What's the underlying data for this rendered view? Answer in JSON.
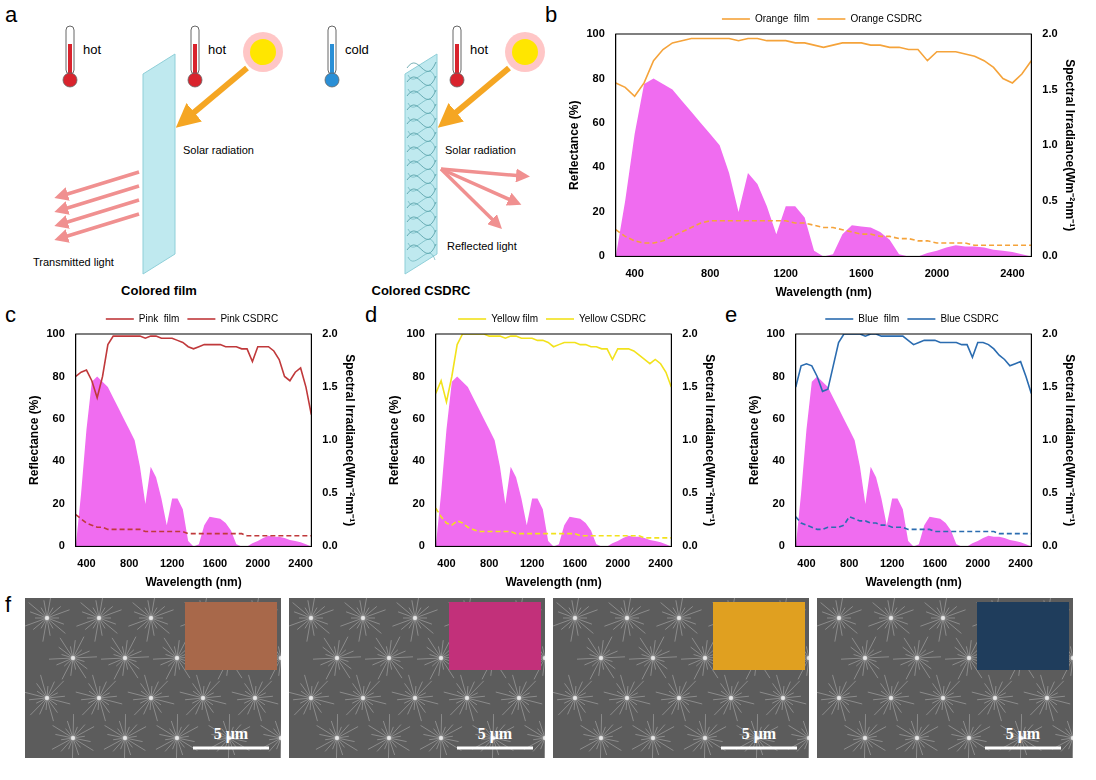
{
  "chart_data": [
    {
      "panel": "b",
      "type": "line",
      "x_label": "Wavelength (nm)",
      "y_label": "Reflectance (%)",
      "y2_label": "Spectral Irradiance(Wm⁻²nm⁻¹)",
      "x": [
        300,
        350,
        400,
        450,
        500,
        550,
        600,
        650,
        700,
        750,
        800,
        850,
        900,
        950,
        1000,
        1050,
        1100,
        1150,
        1200,
        1250,
        1300,
        1350,
        1400,
        1450,
        1500,
        1550,
        1600,
        1650,
        1700,
        1750,
        1800,
        1850,
        1900,
        1950,
        2000,
        2050,
        2100,
        2150,
        2200,
        2250,
        2300,
        2350,
        2400,
        2450,
        2500
      ],
      "xlim": [
        300,
        2500
      ],
      "xticks": [
        400,
        800,
        1200,
        1600,
        2000,
        2400
      ],
      "ylim": [
        0,
        100
      ],
      "yticks": [
        0,
        20,
        40,
        60,
        80,
        100
      ],
      "y2lim": [
        0,
        2
      ],
      "y2ticks": [
        {
          "value": 0,
          "label": "0.0"
        },
        {
          "value": 0.5,
          "label": "0.5"
        },
        {
          "value": 1,
          "label": "1.0"
        },
        {
          "value": 1.5,
          "label": "1.5"
        },
        {
          "value": 2,
          "label": "2.0"
        }
      ],
      "grid": false,
      "legend": "top",
      "series": [
        {
          "type": "area",
          "color": "#f06cf0",
          "axis": "y2",
          "values": [
            0,
            0.5,
            1.1,
            1.55,
            1.6,
            1.55,
            1.5,
            1.4,
            1.3,
            1.2,
            1.1,
            1.0,
            0.75,
            0.4,
            0.75,
            0.65,
            0.45,
            0.2,
            0.45,
            0.45,
            0.35,
            0.05,
            0,
            0.02,
            0.2,
            0.28,
            0.27,
            0.26,
            0.22,
            0.15,
            0.02,
            0,
            0,
            0.03,
            0.05,
            0.08,
            0.1,
            0.09,
            0.09,
            0.08,
            0.06,
            0.05,
            0.04,
            0.02,
            0
          ]
        },
        {
          "name": "Orange  film",
          "color": "#f5a33a",
          "line_style": "dashed",
          "values": [
            12,
            9,
            7,
            6,
            6,
            7,
            9,
            11,
            13,
            15,
            16,
            16,
            16,
            16,
            16,
            16,
            16,
            16,
            16,
            15,
            15,
            14,
            13,
            13,
            12,
            11,
            10,
            10,
            9,
            9,
            8,
            8,
            7,
            7,
            6,
            6,
            6,
            6,
            5,
            5,
            5,
            5,
            5,
            5,
            5
          ]
        },
        {
          "name": "Orange CSDRC",
          "color": "#f5a33a",
          "line_style": "solid",
          "values": [
            78,
            76,
            72,
            78,
            88,
            93,
            96,
            97,
            98,
            98,
            98,
            98,
            98,
            97,
            98,
            98,
            97,
            97,
            97,
            96,
            96,
            95,
            94,
            95,
            96,
            96,
            96,
            95,
            95,
            94,
            94,
            93,
            93,
            88,
            92,
            92,
            92,
            91,
            90,
            88,
            85,
            80,
            78,
            82,
            88
          ]
        }
      ]
    },
    {
      "panel": "c",
      "type": "line",
      "x_label": "Wavelength (nm)",
      "y_label": "Reflectance (%)",
      "y2_label": "Spectral Irradiance(Wm⁻²nm⁻¹)",
      "x": [
        300,
        350,
        400,
        450,
        500,
        550,
        600,
        650,
        700,
        750,
        800,
        850,
        900,
        950,
        1000,
        1050,
        1100,
        1150,
        1200,
        1250,
        1300,
        1350,
        1400,
        1450,
        1500,
        1550,
        1600,
        1650,
        1700,
        1750,
        1800,
        1850,
        1900,
        1950,
        2000,
        2050,
        2100,
        2150,
        2200,
        2250,
        2300,
        2350,
        2400,
        2450,
        2500
      ],
      "xlim": [
        300,
        2500
      ],
      "xticks": [
        400,
        800,
        1200,
        1600,
        2000,
        2400
      ],
      "ylim": [
        0,
        100
      ],
      "yticks": [
        0,
        20,
        40,
        60,
        80,
        100
      ],
      "y2lim": [
        0,
        2
      ],
      "y2ticks": [
        {
          "value": 0,
          "label": "0.0"
        },
        {
          "value": 0.5,
          "label": "0.5"
        },
        {
          "value": 1,
          "label": "1.0"
        },
        {
          "value": 1.5,
          "label": "1.5"
        },
        {
          "value": 2,
          "label": "2.0"
        }
      ],
      "grid": false,
      "legend": "top",
      "series": [
        {
          "type": "area",
          "color": "#f06cf0",
          "axis": "y2",
          "values": [
            0,
            0.5,
            1.1,
            1.55,
            1.6,
            1.55,
            1.5,
            1.4,
            1.3,
            1.2,
            1.1,
            1.0,
            0.75,
            0.4,
            0.75,
            0.65,
            0.45,
            0.2,
            0.45,
            0.45,
            0.35,
            0.05,
            0,
            0.02,
            0.2,
            0.28,
            0.27,
            0.26,
            0.22,
            0.15,
            0.02,
            0,
            0,
            0.03,
            0.05,
            0.08,
            0.1,
            0.09,
            0.09,
            0.08,
            0.06,
            0.05,
            0.04,
            0.02,
            0
          ]
        },
        {
          "name": "Pink  film",
          "color": "#c0393b",
          "line_style": "dashed",
          "values": [
            15,
            13,
            11,
            10,
            9,
            9,
            8,
            8,
            8,
            8,
            8,
            8,
            8,
            7,
            7,
            7,
            7,
            7,
            7,
            7,
            7,
            6,
            6,
            6,
            6,
            6,
            6,
            6,
            6,
            6,
            6,
            6,
            5,
            5,
            5,
            5,
            5,
            5,
            5,
            5,
            5,
            5,
            5,
            5,
            5
          ]
        },
        {
          "name": "Pink CSDRC",
          "color": "#c0393b",
          "line_style": "solid",
          "values": [
            80,
            82,
            83,
            78,
            70,
            80,
            95,
            99,
            99,
            99,
            99,
            99,
            99,
            98,
            99,
            99,
            98,
            98,
            98,
            97,
            96,
            94,
            93,
            94,
            95,
            95,
            95,
            95,
            94,
            94,
            94,
            93,
            93,
            87,
            94,
            94,
            94,
            92,
            88,
            80,
            78,
            82,
            84,
            75,
            62
          ]
        }
      ]
    },
    {
      "panel": "d",
      "type": "line",
      "x_label": "Wavelength (nm)",
      "y_label": "Reflectance (%)",
      "y2_label": "Spectral Irradiance(Wm⁻²nm⁻¹)",
      "x": [
        300,
        350,
        400,
        450,
        500,
        550,
        600,
        650,
        700,
        750,
        800,
        850,
        900,
        950,
        1000,
        1050,
        1100,
        1150,
        1200,
        1250,
        1300,
        1350,
        1400,
        1450,
        1500,
        1550,
        1600,
        1650,
        1700,
        1750,
        1800,
        1850,
        1900,
        1950,
        2000,
        2050,
        2100,
        2150,
        2200,
        2250,
        2300,
        2350,
        2400,
        2450,
        2500
      ],
      "xlim": [
        300,
        2500
      ],
      "xticks": [
        400,
        800,
        1200,
        1600,
        2000,
        2400
      ],
      "ylim": [
        0,
        100
      ],
      "yticks": [
        0,
        20,
        40,
        60,
        80,
        100
      ],
      "y2lim": [
        0,
        2
      ],
      "y2ticks": [
        {
          "value": 0,
          "label": "0.0"
        },
        {
          "value": 0.5,
          "label": "0.5"
        },
        {
          "value": 1,
          "label": "1.0"
        },
        {
          "value": 1.5,
          "label": "1.5"
        },
        {
          "value": 2,
          "label": "2.0"
        }
      ],
      "grid": false,
      "legend": "top",
      "series": [
        {
          "type": "area",
          "color": "#f06cf0",
          "axis": "y2",
          "values": [
            0,
            0.5,
            1.1,
            1.55,
            1.6,
            1.55,
            1.5,
            1.4,
            1.3,
            1.2,
            1.1,
            1.0,
            0.75,
            0.4,
            0.75,
            0.65,
            0.45,
            0.2,
            0.45,
            0.45,
            0.35,
            0.05,
            0,
            0.02,
            0.2,
            0.28,
            0.27,
            0.26,
            0.22,
            0.15,
            0.02,
            0,
            0,
            0.03,
            0.05,
            0.08,
            0.1,
            0.09,
            0.09,
            0.08,
            0.06,
            0.05,
            0.04,
            0.02,
            0
          ]
        },
        {
          "name": "Yellow film",
          "color": "#f2e21c",
          "line_style": "dashed",
          "values": [
            18,
            14,
            11,
            10,
            12,
            11,
            9,
            8,
            7,
            7,
            7,
            7,
            7,
            7,
            7,
            6,
            6,
            6,
            6,
            6,
            6,
            6,
            6,
            6,
            6,
            6,
            6,
            5,
            5,
            5,
            5,
            5,
            5,
            5,
            5,
            5,
            5,
            5,
            5,
            4,
            4,
            4,
            4,
            4,
            4
          ]
        },
        {
          "name": "Yellow CSDRC",
          "color": "#f2e21c",
          "line_style": "solid",
          "values": [
            72,
            78,
            68,
            80,
            95,
            100,
            100,
            100,
            100,
            100,
            99,
            99,
            99,
            98,
            99,
            99,
            98,
            98,
            98,
            97,
            97,
            96,
            94,
            95,
            96,
            96,
            96,
            95,
            95,
            94,
            94,
            93,
            93,
            88,
            93,
            93,
            93,
            92,
            90,
            88,
            86,
            88,
            86,
            82,
            75
          ]
        }
      ]
    },
    {
      "panel": "e",
      "type": "line",
      "x_label": "Wavelength (nm)",
      "y_label": "Reflectance (%)",
      "y2_label": "Spectral Irradiance(Wm⁻²nm⁻¹)",
      "x": [
        300,
        350,
        400,
        450,
        500,
        550,
        600,
        650,
        700,
        750,
        800,
        850,
        900,
        950,
        1000,
        1050,
        1100,
        1150,
        1200,
        1250,
        1300,
        1350,
        1400,
        1450,
        1500,
        1550,
        1600,
        1650,
        1700,
        1750,
        1800,
        1850,
        1900,
        1950,
        2000,
        2050,
        2100,
        2150,
        2200,
        2250,
        2300,
        2350,
        2400,
        2450,
        2500
      ],
      "xlim": [
        300,
        2500
      ],
      "xticks": [
        400,
        800,
        1200,
        1600,
        2000,
        2400
      ],
      "ylim": [
        0,
        100
      ],
      "yticks": [
        0,
        20,
        40,
        60,
        80,
        100
      ],
      "y2lim": [
        0,
        2
      ],
      "y2ticks": [
        {
          "value": 0,
          "label": "0.0"
        },
        {
          "value": 0.5,
          "label": "0.5"
        },
        {
          "value": 1,
          "label": "1.0"
        },
        {
          "value": 1.5,
          "label": "1.5"
        },
        {
          "value": 2,
          "label": "2.0"
        }
      ],
      "grid": false,
      "legend": "top",
      "series": [
        {
          "type": "area",
          "color": "#f06cf0",
          "axis": "y2",
          "values": [
            0,
            0.5,
            1.1,
            1.55,
            1.6,
            1.55,
            1.5,
            1.4,
            1.3,
            1.2,
            1.1,
            1.0,
            0.75,
            0.4,
            0.75,
            0.65,
            0.45,
            0.2,
            0.45,
            0.45,
            0.35,
            0.05,
            0,
            0.02,
            0.2,
            0.28,
            0.27,
            0.26,
            0.22,
            0.15,
            0.02,
            0,
            0,
            0.03,
            0.05,
            0.08,
            0.1,
            0.09,
            0.09,
            0.08,
            0.06,
            0.05,
            0.04,
            0.02,
            0
          ]
        },
        {
          "name": "Blue  film",
          "color": "#2b6cb0",
          "line_style": "dashed",
          "values": [
            14,
            11,
            10,
            9,
            8,
            8,
            9,
            9,
            9,
            10,
            14,
            13,
            12,
            12,
            11,
            11,
            10,
            10,
            9,
            9,
            9,
            8,
            8,
            8,
            8,
            8,
            7,
            7,
            7,
            7,
            7,
            7,
            7,
            7,
            7,
            7,
            7,
            7,
            6,
            6,
            6,
            6,
            6,
            6,
            6
          ]
        },
        {
          "name": "Blue CSDRC",
          "color": "#2b6cb0",
          "line_style": "solid",
          "values": [
            75,
            85,
            86,
            85,
            80,
            73,
            74,
            85,
            96,
            100,
            100,
            100,
            100,
            99,
            100,
            100,
            99,
            99,
            99,
            99,
            99,
            97,
            95,
            96,
            97,
            97,
            97,
            96,
            96,
            96,
            96,
            95,
            95,
            89,
            96,
            96,
            95,
            93,
            90,
            88,
            85,
            86,
            87,
            80,
            72
          ]
        }
      ]
    }
  ],
  "diagram": {
    "panel": "a",
    "scenes": [
      {
        "left_temperature": {
          "text": "hot",
          "color": "#d9232d"
        },
        "right_temperature": {
          "text": "hot",
          "color": "#d9232d"
        },
        "incoming": "Solar radiation",
        "outgoing": "Transmitted light",
        "caption": "Colored film"
      },
      {
        "left_temperature": {
          "text": "cold",
          "color": "#2a8fd6"
        },
        "right_temperature": {
          "text": "hot",
          "color": "#d9232d"
        },
        "incoming": "Solar radiation",
        "outgoing": "Reflected light",
        "caption": "Colored CSDRC"
      }
    ]
  },
  "images": {
    "panel": "f",
    "items": [
      {
        "inset_color": "#a8684a",
        "scale_bar": "5 μm"
      },
      {
        "inset_color": "#c2307a",
        "scale_bar": "5 μm"
      },
      {
        "inset_color": "#e0a020",
        "scale_bar": "5 μm"
      },
      {
        "inset_color": "#1f3d5c",
        "scale_bar": "5 μm"
      }
    ]
  }
}
